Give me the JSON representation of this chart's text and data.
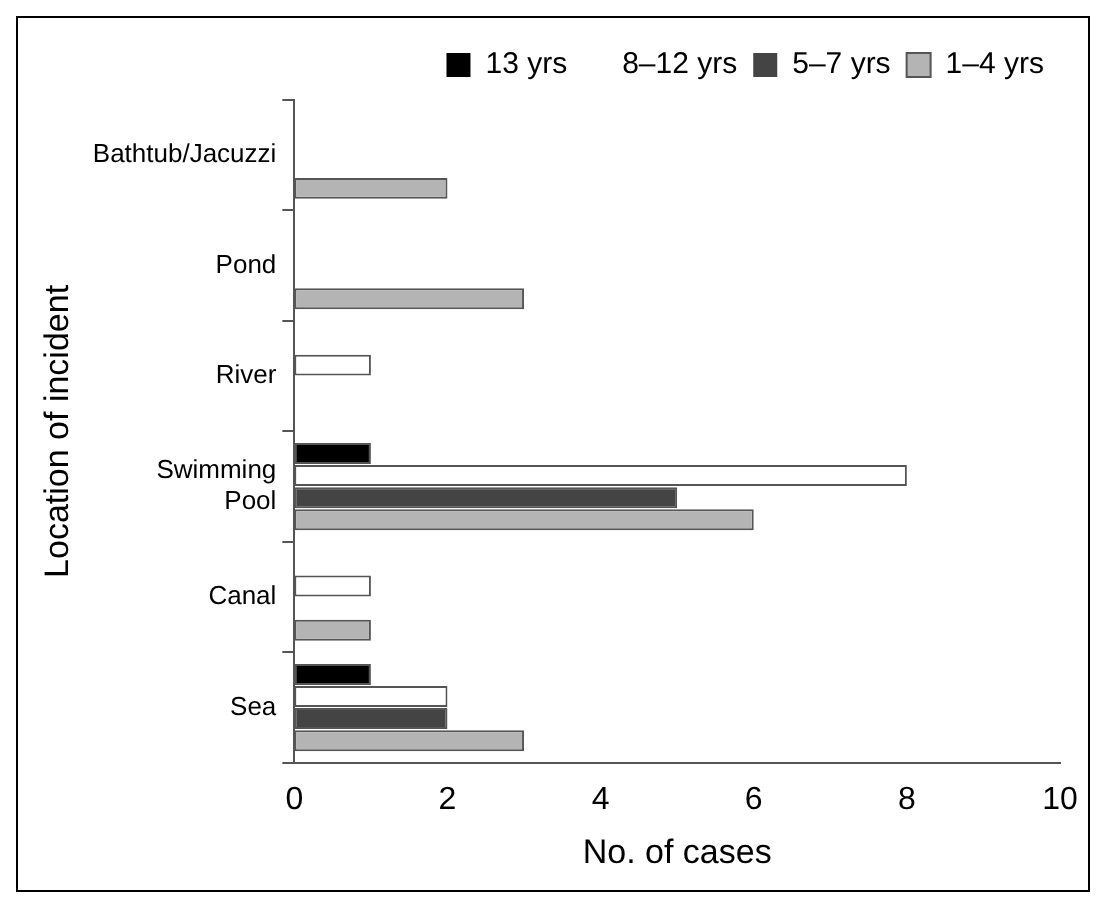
{
  "chart_data": {
    "type": "bar",
    "orientation": "horizontal",
    "xlabel": "No. of cases",
    "ylabel": "Location of incident",
    "categories": [
      "Bathtub/Jacuzzi",
      "Pond",
      "River",
      "Swimming Pool",
      "Canal",
      "Sea"
    ],
    "series": [
      {
        "name": "13 yrs",
        "color": "#000000",
        "values": [
          0,
          0,
          0,
          1,
          0,
          1
        ]
      },
      {
        "name": "8–12 yrs",
        "color": "#ffffff",
        "values": [
          0,
          0,
          1,
          8,
          1,
          2
        ]
      },
      {
        "name": "5–7 yrs",
        "color": "#444444",
        "values": [
          0,
          0,
          0,
          5,
          0,
          2
        ]
      },
      {
        "name": "1–4 yrs",
        "color": "#b4b4b4",
        "values": [
          2,
          3,
          0,
          6,
          1,
          3
        ]
      }
    ],
    "xlim": [
      0,
      10
    ],
    "xticks": [
      0,
      2,
      4,
      6,
      8,
      10
    ],
    "grid": false,
    "legend": "top right"
  }
}
